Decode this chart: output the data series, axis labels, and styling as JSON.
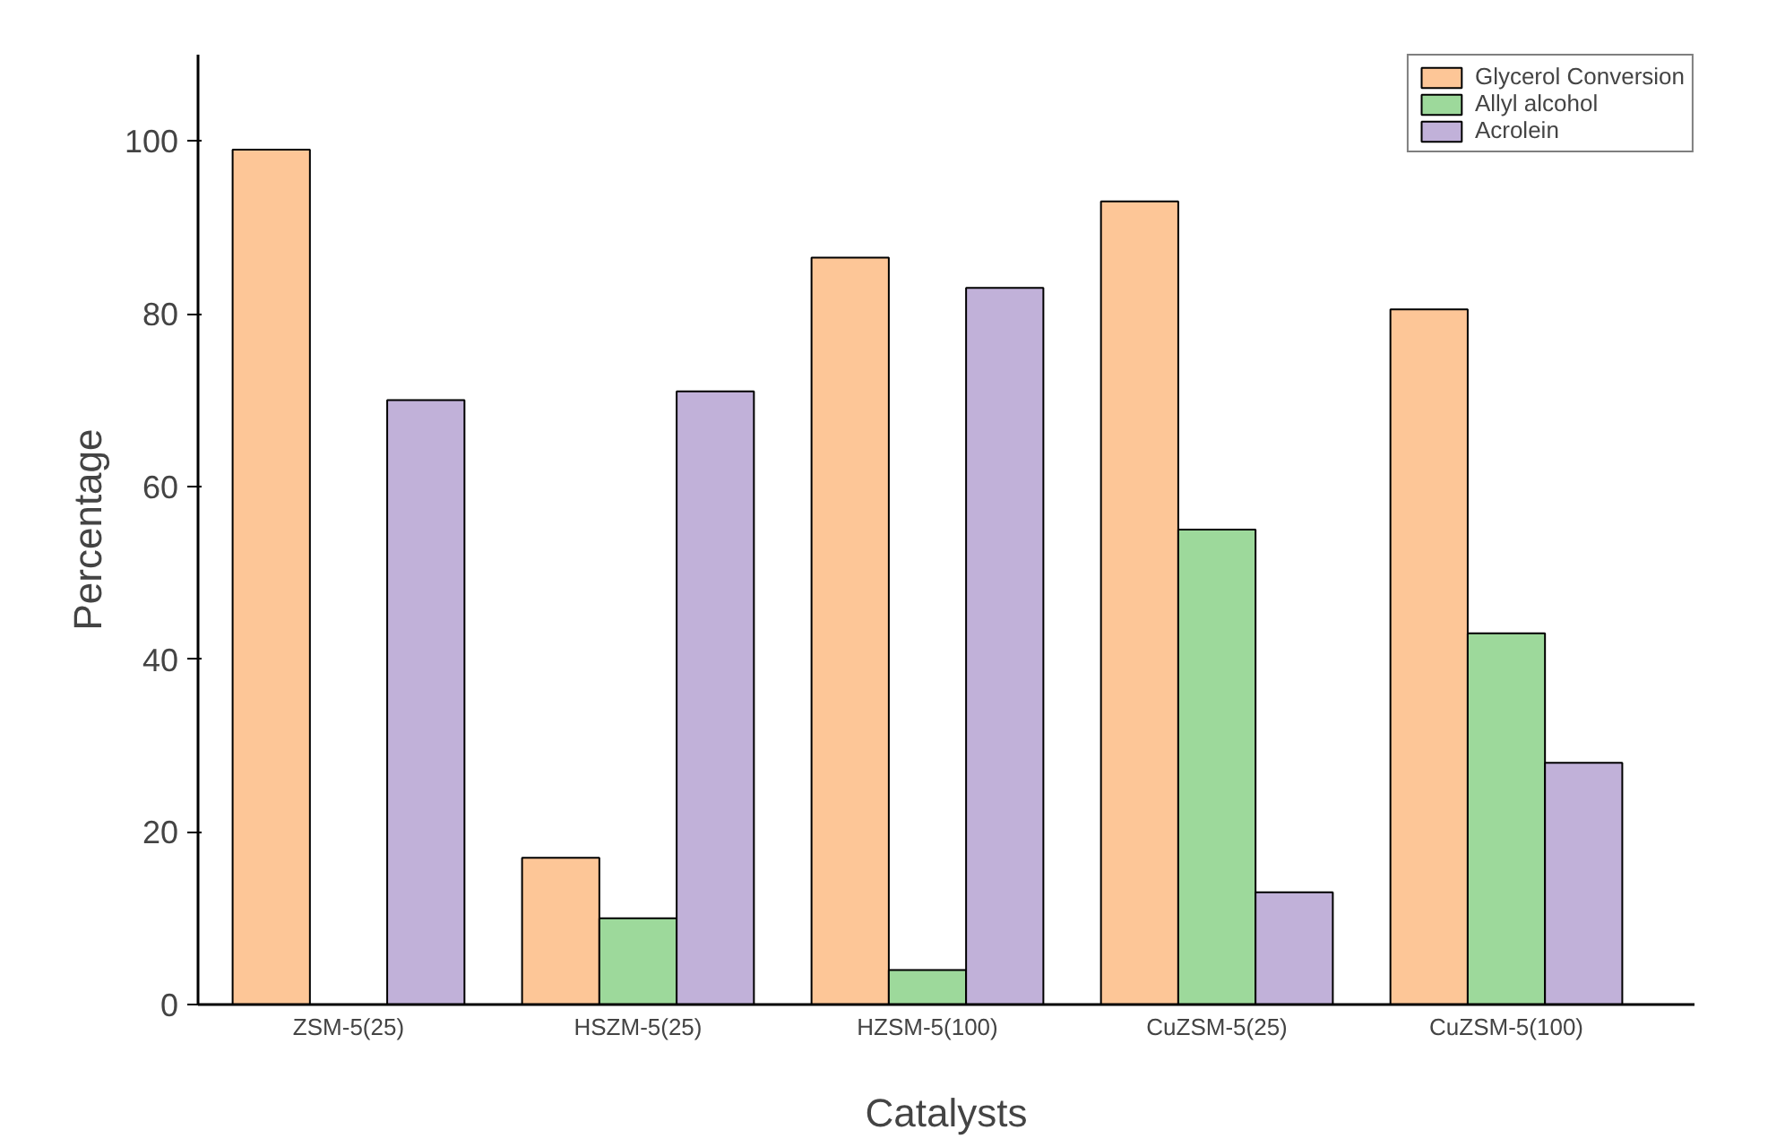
{
  "chart_data": {
    "type": "bar",
    "xlabel": "Catalysts",
    "ylabel": "Percentage",
    "categories": [
      "ZSM-5(25)",
      "HSZM-5(25)",
      "HZSM-5(100)",
      "CuZSM-5(25)",
      "CuZSM-5(100)"
    ],
    "series": [
      {
        "name": "Glycerol Conversion",
        "color": "#fdc697",
        "values": [
          99,
          17,
          86.5,
          93,
          80.5
        ]
      },
      {
        "name": "Allyl alcohol",
        "color": "#9dd99b",
        "values": [
          null,
          10,
          4,
          55,
          43
        ]
      },
      {
        "name": "Acrolein",
        "color": "#c1b1d9",
        "values": [
          70,
          71,
          83,
          13,
          28
        ]
      }
    ],
    "ylim": [
      0,
      110
    ],
    "yticks": [
      0,
      20,
      40,
      60,
      80,
      100
    ],
    "grid": false,
    "legend": "top right"
  }
}
